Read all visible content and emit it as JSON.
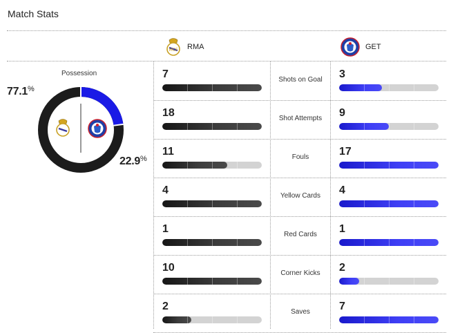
{
  "title": "Match Stats",
  "teams": {
    "home": {
      "abbr": "RMA",
      "logo_icon": "real-madrid-crest-icon",
      "color": "#1a1a1a"
    },
    "away": {
      "abbr": "GET",
      "logo_icon": "getafe-crest-icon",
      "color": "#1a1ae6"
    }
  },
  "possession": {
    "label": "Possession",
    "home_pct": "77.1",
    "away_pct": "22.9",
    "symbol": "%"
  },
  "stats": [
    {
      "name": "Shots on Goal",
      "home": "7",
      "away": "3",
      "home_fill": 1.0,
      "away_fill": 0.43
    },
    {
      "name": "Shot Attempts",
      "home": "18",
      "away": "9",
      "home_fill": 1.0,
      "away_fill": 0.5
    },
    {
      "name": "Fouls",
      "home": "11",
      "away": "17",
      "home_fill": 0.65,
      "away_fill": 1.0
    },
    {
      "name": "Yellow Cards",
      "home": "4",
      "away": "4",
      "home_fill": 1.0,
      "away_fill": 1.0
    },
    {
      "name": "Red Cards",
      "home": "1",
      "away": "1",
      "home_fill": 1.0,
      "away_fill": 1.0
    },
    {
      "name": "Corner Kicks",
      "home": "10",
      "away": "2",
      "home_fill": 1.0,
      "away_fill": 0.2
    },
    {
      "name": "Saves",
      "home": "2",
      "away": "7",
      "home_fill": 0.29,
      "away_fill": 1.0
    }
  ]
}
